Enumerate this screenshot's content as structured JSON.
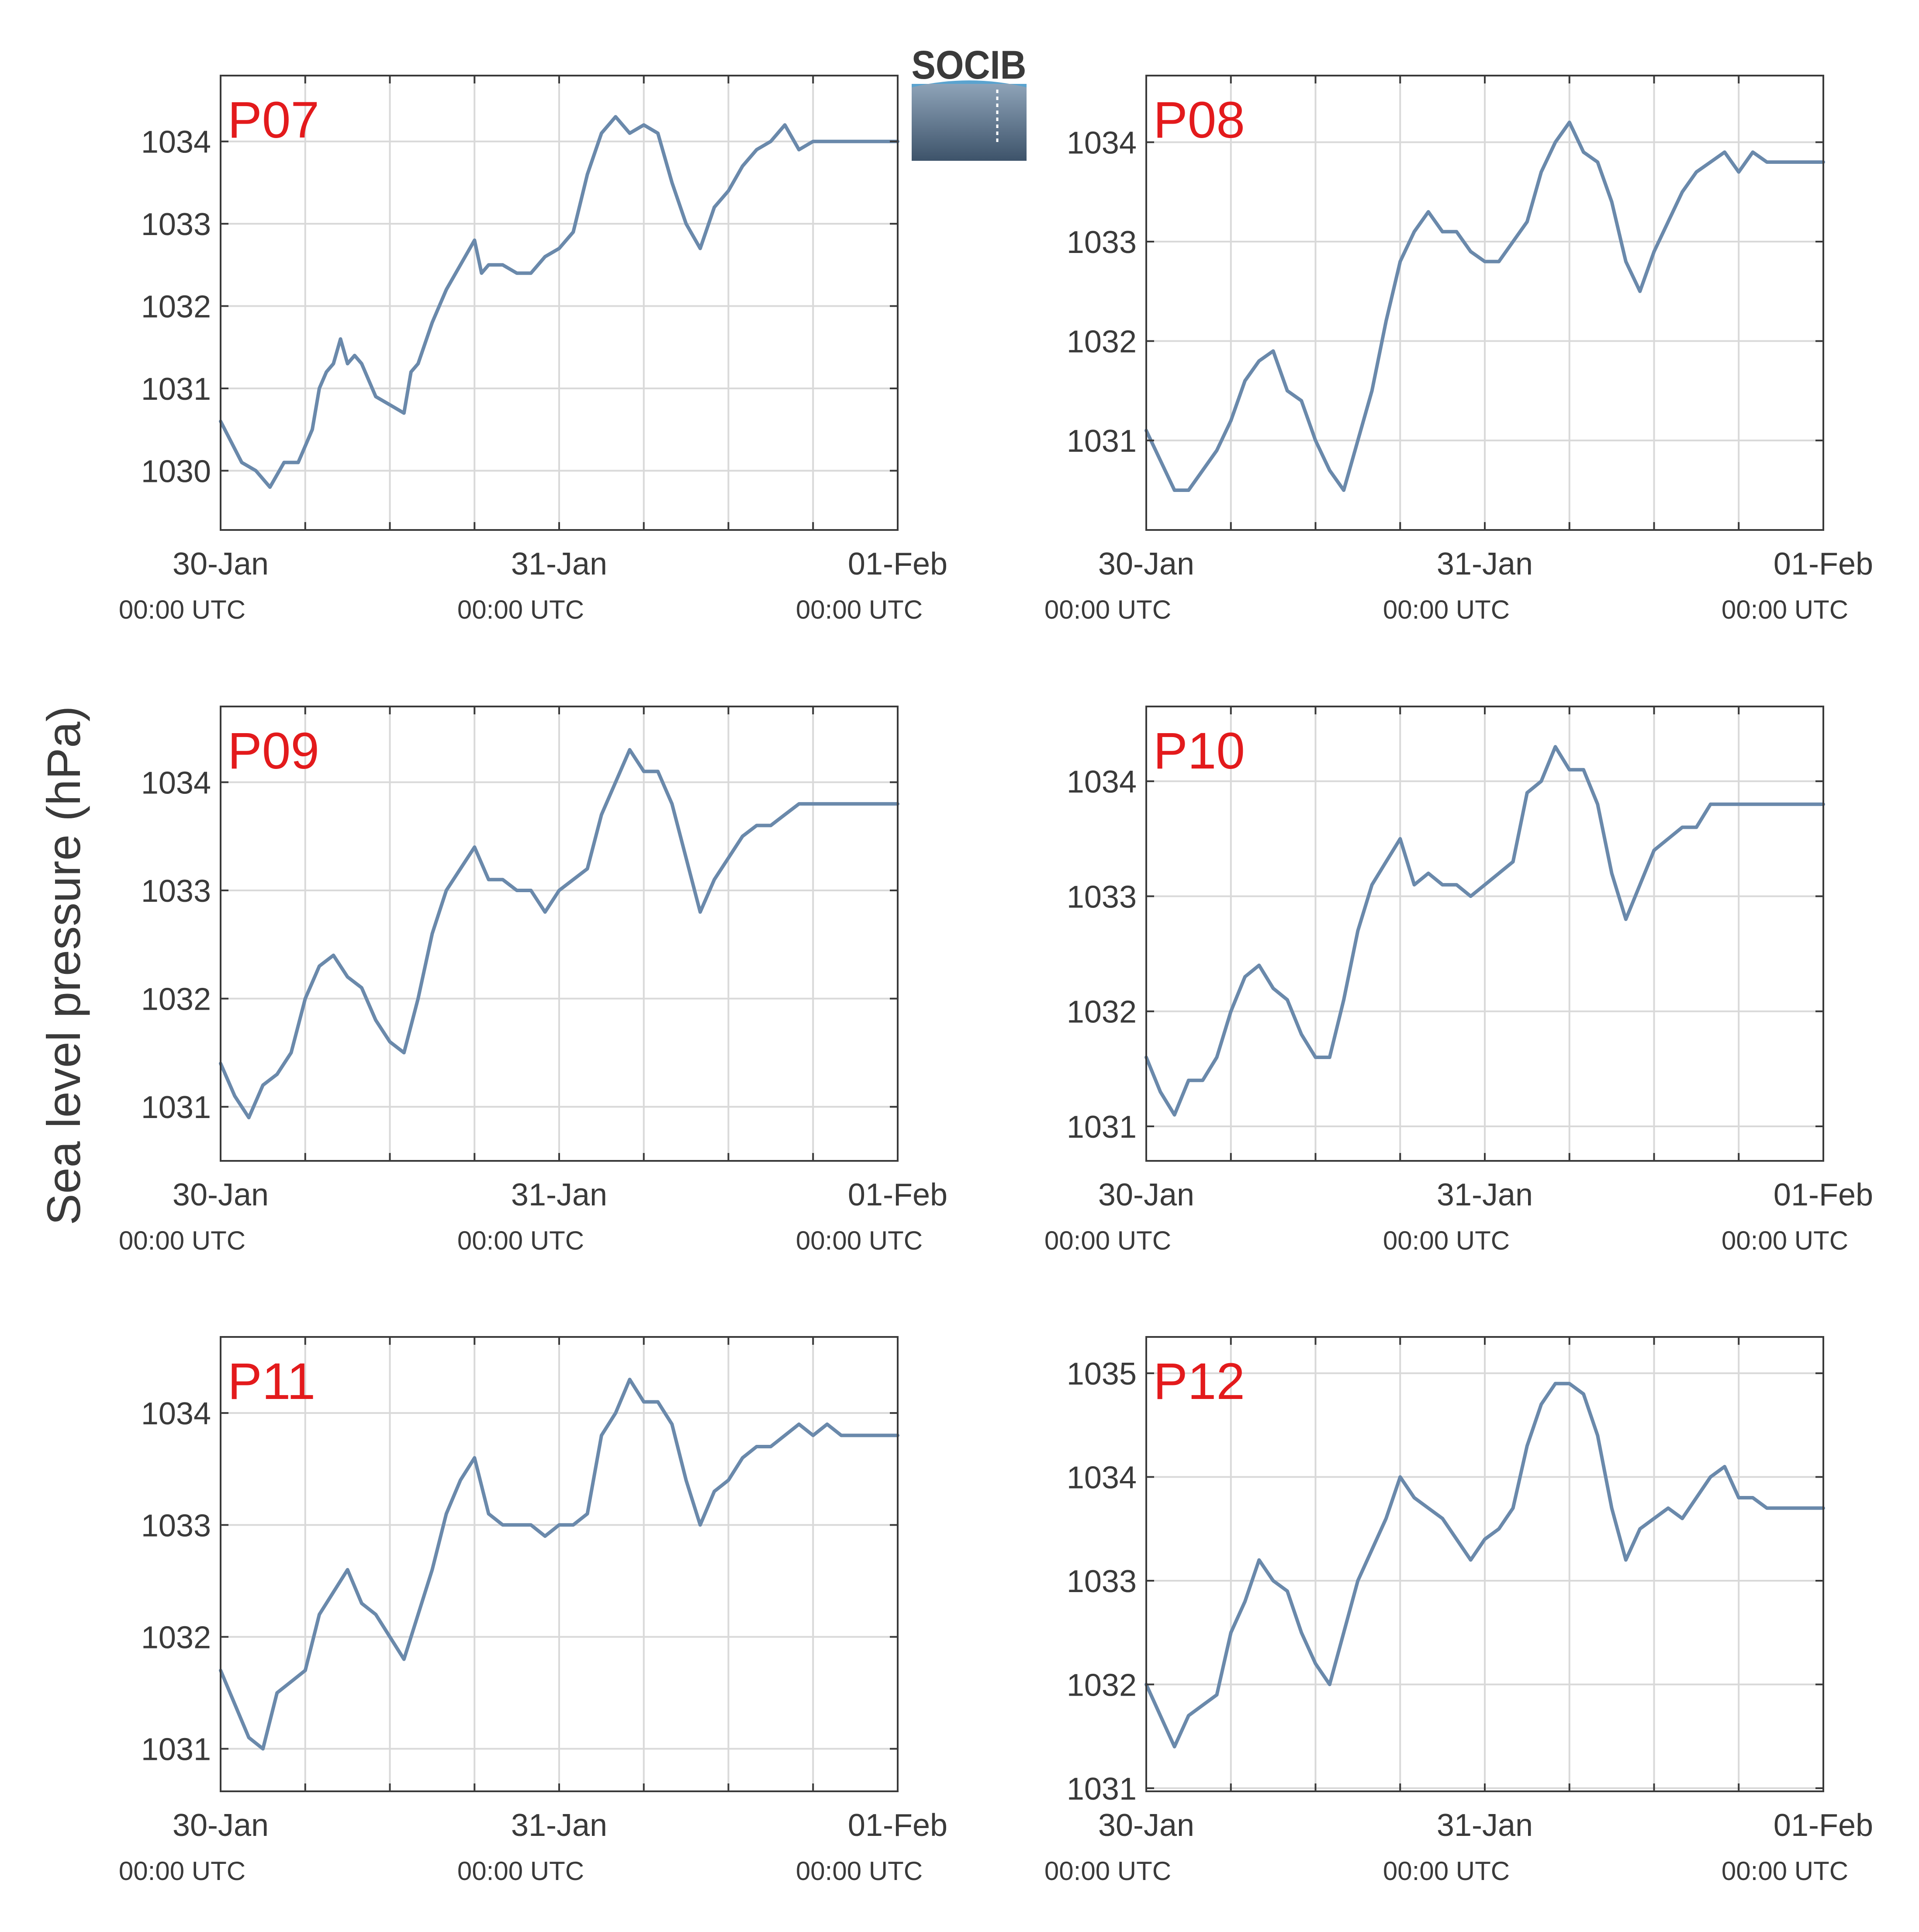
{
  "colors": {
    "line": "#6a89ab",
    "panel_label": "#e31a1c",
    "grid": "#d9d9d9",
    "axis": "#3a3a3a",
    "logo_text": "#5aa3cf",
    "logo_top": "#8ea3b8",
    "logo_bottom": "#3d536a"
  },
  "figure": {
    "ylabel": "Sea level pressure (hPa)",
    "logo_text": "SOCIB",
    "logo_icon": "socib-logo"
  },
  "chart_data": [
    {
      "type": "line",
      "label": "P07",
      "xlim": [
        "2015-01-30 00:00",
        "2015-02-01 00:00"
      ],
      "xticks": [
        {
          "date": "30-Jan",
          "time": "00:00 UTC"
        },
        {
          "date": "31-Jan",
          "time": "00:00 UTC"
        },
        {
          "date": "01-Feb",
          "time": "00:00 UTC"
        }
      ],
      "yticks": [
        1030,
        1031,
        1032,
        1033,
        1034
      ],
      "ylim": [
        1029.28,
        1034.8
      ],
      "x_hours": [
        0,
        1.5,
        2.5,
        3.5,
        4.5,
        5.5,
        6,
        6.5,
        7,
        7.5,
        8,
        8.5,
        9,
        9.5,
        10,
        11,
        12,
        13,
        13.5,
        14,
        15,
        16,
        17,
        18,
        18.5,
        19,
        19.5,
        20,
        21,
        22,
        23,
        24,
        25,
        26,
        27,
        28,
        29,
        30,
        31,
        32,
        33,
        34,
        35,
        36,
        37,
        38,
        39,
        40,
        41,
        42,
        43,
        44,
        45,
        46,
        47,
        48
      ],
      "y": [
        1030.6,
        1030.1,
        1030.0,
        1029.8,
        1030.1,
        1030.1,
        1030.3,
        1030.5,
        1031.0,
        1031.2,
        1031.3,
        1031.6,
        1031.3,
        1031.4,
        1031.3,
        1030.9,
        1030.8,
        1030.7,
        1031.2,
        1031.3,
        1031.8,
        1032.2,
        1032.5,
        1032.8,
        1032.4,
        1032.5,
        1032.5,
        1032.5,
        1032.4,
        1032.4,
        1032.6,
        1032.7,
        1032.9,
        1033.6,
        1034.1,
        1034.3,
        1034.1,
        1034.2,
        1034.1,
        1033.5,
        1033.0,
        1032.7,
        1033.2,
        1033.4,
        1033.7,
        1033.9,
        1034.0,
        1034.2,
        1033.9,
        1034.0,
        1034.0,
        1034.0,
        1034.0,
        1034.0,
        1034.0,
        1034.0
      ]
    },
    {
      "type": "line",
      "label": "P08",
      "xlim": [
        "2015-01-30 00:00",
        "2015-02-01 00:00"
      ],
      "xticks": [
        {
          "date": "30-Jan",
          "time": "00:00 UTC"
        },
        {
          "date": "31-Jan",
          "time": "00:00 UTC"
        },
        {
          "date": "01-Feb",
          "time": "00:00 UTC"
        }
      ],
      "yticks": [
        1031,
        1032,
        1033,
        1034
      ],
      "ylim": [
        1030.1,
        1034.67
      ],
      "x_hours": [
        0,
        1,
        2,
        3,
        4,
        5,
        6,
        7,
        8,
        9,
        10,
        11,
        12,
        13,
        14,
        15,
        16,
        17,
        18,
        19,
        20,
        21,
        22,
        23,
        24,
        25,
        26,
        27,
        28,
        29,
        30,
        31,
        32,
        33,
        34,
        35,
        36,
        37,
        38,
        39,
        40,
        41,
        42,
        43,
        44,
        45,
        46,
        47,
        48
      ],
      "y": [
        1031.1,
        1030.8,
        1030.5,
        1030.5,
        1030.7,
        1030.9,
        1031.2,
        1031.6,
        1031.8,
        1031.9,
        1031.5,
        1031.4,
        1031.0,
        1030.7,
        1030.5,
        1031.0,
        1031.5,
        1032.2,
        1032.8,
        1033.1,
        1033.3,
        1033.1,
        1033.1,
        1032.9,
        1032.8,
        1032.8,
        1033.0,
        1033.2,
        1033.7,
        1034.0,
        1034.2,
        1033.9,
        1033.8,
        1033.4,
        1032.8,
        1032.5,
        1032.9,
        1033.2,
        1033.5,
        1033.7,
        1033.8,
        1033.9,
        1033.7,
        1033.9,
        1033.8,
        1033.8,
        1033.8,
        1033.8,
        1033.8
      ]
    },
    {
      "type": "line",
      "label": "P09",
      "xlim": [
        "2015-01-30 00:00",
        "2015-02-01 00:00"
      ],
      "xticks": [
        {
          "date": "30-Jan",
          "time": "00:00 UTC"
        },
        {
          "date": "31-Jan",
          "time": "00:00 UTC"
        },
        {
          "date": "01-Feb",
          "time": "00:00 UTC"
        }
      ],
      "yticks": [
        1031,
        1032,
        1033,
        1034
      ],
      "ylim": [
        1030.5,
        1034.7
      ],
      "x_hours": [
        0,
        1,
        2,
        3,
        4,
        5,
        6,
        7,
        8,
        9,
        10,
        11,
        12,
        13,
        14,
        15,
        16,
        17,
        18,
        19,
        20,
        21,
        22,
        23,
        24,
        25,
        26,
        27,
        28,
        29,
        30,
        31,
        32,
        33,
        34,
        35,
        36,
        37,
        38,
        39,
        40,
        41,
        42,
        43,
        44,
        45,
        46,
        47,
        48
      ],
      "y": [
        1031.4,
        1031.1,
        1030.9,
        1031.2,
        1031.3,
        1031.5,
        1032.0,
        1032.3,
        1032.4,
        1032.2,
        1032.1,
        1031.8,
        1031.6,
        1031.5,
        1032.0,
        1032.6,
        1033.0,
        1033.2,
        1033.4,
        1033.1,
        1033.1,
        1033.0,
        1033.0,
        1032.8,
        1033.0,
        1033.1,
        1033.2,
        1033.7,
        1034.0,
        1034.3,
        1034.1,
        1034.1,
        1033.8,
        1033.3,
        1032.8,
        1033.1,
        1033.3,
        1033.5,
        1033.6,
        1033.6,
        1033.7,
        1033.8,
        1033.8,
        1033.8,
        1033.8,
        1033.8,
        1033.8,
        1033.8,
        1033.8
      ]
    },
    {
      "type": "line",
      "label": "P10",
      "xlim": [
        "2015-01-30 00:00",
        "2015-02-01 00:00"
      ],
      "xticks": [
        {
          "date": "30-Jan",
          "time": "00:00 UTC"
        },
        {
          "date": "31-Jan",
          "time": "00:00 UTC"
        },
        {
          "date": "01-Feb",
          "time": "00:00 UTC"
        }
      ],
      "yticks": [
        1031,
        1032,
        1033,
        1034
      ],
      "ylim": [
        1030.7,
        1034.65
      ],
      "x_hours": [
        0,
        1,
        2,
        3,
        4,
        5,
        6,
        7,
        8,
        9,
        10,
        11,
        12,
        13,
        14,
        15,
        16,
        17,
        18,
        19,
        20,
        21,
        22,
        23,
        24,
        25,
        26,
        27,
        28,
        29,
        30,
        31,
        32,
        33,
        34,
        35,
        36,
        37,
        38,
        39,
        40,
        41,
        42,
        43,
        44,
        45,
        46,
        47,
        48
      ],
      "y": [
        1031.6,
        1031.3,
        1031.1,
        1031.4,
        1031.4,
        1031.6,
        1032.0,
        1032.3,
        1032.4,
        1032.2,
        1032.1,
        1031.8,
        1031.6,
        1031.6,
        1032.1,
        1032.7,
        1033.1,
        1033.3,
        1033.5,
        1033.1,
        1033.2,
        1033.1,
        1033.1,
        1033.0,
        1033.1,
        1033.2,
        1033.3,
        1033.9,
        1034.0,
        1034.3,
        1034.1,
        1034.1,
        1033.8,
        1033.2,
        1032.8,
        1033.1,
        1033.4,
        1033.5,
        1033.6,
        1033.6,
        1033.8,
        1033.8,
        1033.8,
        1033.8,
        1033.8,
        1033.8,
        1033.8,
        1033.8,
        1033.8
      ]
    },
    {
      "type": "line",
      "label": "P11",
      "xlim": [
        "2015-01-30 00:00",
        "2015-02-01 00:00"
      ],
      "xticks": [
        {
          "date": "30-Jan",
          "time": "00:00 UTC"
        },
        {
          "date": "31-Jan",
          "time": "00:00 UTC"
        },
        {
          "date": "01-Feb",
          "time": "00:00 UTC"
        }
      ],
      "yticks": [
        1031,
        1032,
        1033,
        1034
      ],
      "ylim": [
        1030.62,
        1034.68
      ],
      "x_hours": [
        0,
        1,
        2,
        3,
        4,
        5,
        6,
        7,
        8,
        9,
        10,
        11,
        12,
        13,
        14,
        15,
        16,
        17,
        18,
        19,
        20,
        21,
        22,
        23,
        24,
        25,
        26,
        27,
        28,
        29,
        30,
        31,
        32,
        33,
        34,
        35,
        36,
        37,
        38,
        39,
        40,
        41,
        42,
        43,
        44,
        45,
        46,
        47,
        48
      ],
      "y": [
        1031.7,
        1031.4,
        1031.1,
        1031.0,
        1031.5,
        1031.6,
        1031.7,
        1032.2,
        1032.4,
        1032.6,
        1032.3,
        1032.2,
        1032.0,
        1031.8,
        1032.2,
        1032.6,
        1033.1,
        1033.4,
        1033.6,
        1033.1,
        1033.0,
        1033.0,
        1033.0,
        1032.9,
        1033.0,
        1033.0,
        1033.1,
        1033.8,
        1034.0,
        1034.3,
        1034.1,
        1034.1,
        1033.9,
        1033.4,
        1033.0,
        1033.3,
        1033.4,
        1033.6,
        1033.7,
        1033.7,
        1033.8,
        1033.9,
        1033.8,
        1033.9,
        1033.8,
        1033.8,
        1033.8,
        1033.8,
        1033.8
      ]
    },
    {
      "type": "line",
      "label": "P12",
      "xlim": [
        "2015-01-30 00:00",
        "2015-02-01 00:00"
      ],
      "xticks": [
        {
          "date": "30-Jan",
          "time": "00:00 UTC"
        },
        {
          "date": "31-Jan",
          "time": "00:00 UTC"
        },
        {
          "date": "01-Feb",
          "time": "00:00 UTC"
        }
      ],
      "yticks": [
        1031,
        1032,
        1033,
        1034,
        1035
      ],
      "ylim": [
        1030.97,
        1035.35
      ],
      "x_hours": [
        0,
        1,
        2,
        3,
        4,
        5,
        6,
        7,
        8,
        9,
        10,
        11,
        12,
        13,
        14,
        15,
        16,
        17,
        18,
        19,
        20,
        21,
        22,
        23,
        24,
        25,
        26,
        27,
        28,
        29,
        30,
        31,
        32,
        33,
        34,
        35,
        36,
        37,
        38,
        39,
        40,
        41,
        42,
        43,
        44,
        45,
        46,
        47,
        48
      ],
      "y": [
        1032.0,
        1031.7,
        1031.4,
        1031.7,
        1031.8,
        1031.9,
        1032.5,
        1032.8,
        1033.2,
        1033.0,
        1032.9,
        1032.5,
        1032.2,
        1032.0,
        1032.5,
        1033.0,
        1033.3,
        1033.6,
        1034.0,
        1033.8,
        1033.7,
        1033.6,
        1033.4,
        1033.2,
        1033.4,
        1033.5,
        1033.7,
        1034.3,
        1034.7,
        1034.9,
        1034.9,
        1034.8,
        1034.4,
        1033.7,
        1033.2,
        1033.5,
        1033.6,
        1033.7,
        1033.6,
        1033.8,
        1034.0,
        1034.1,
        1033.8,
        1033.8,
        1033.7,
        1033.7,
        1033.7,
        1033.7,
        1033.7
      ]
    }
  ]
}
